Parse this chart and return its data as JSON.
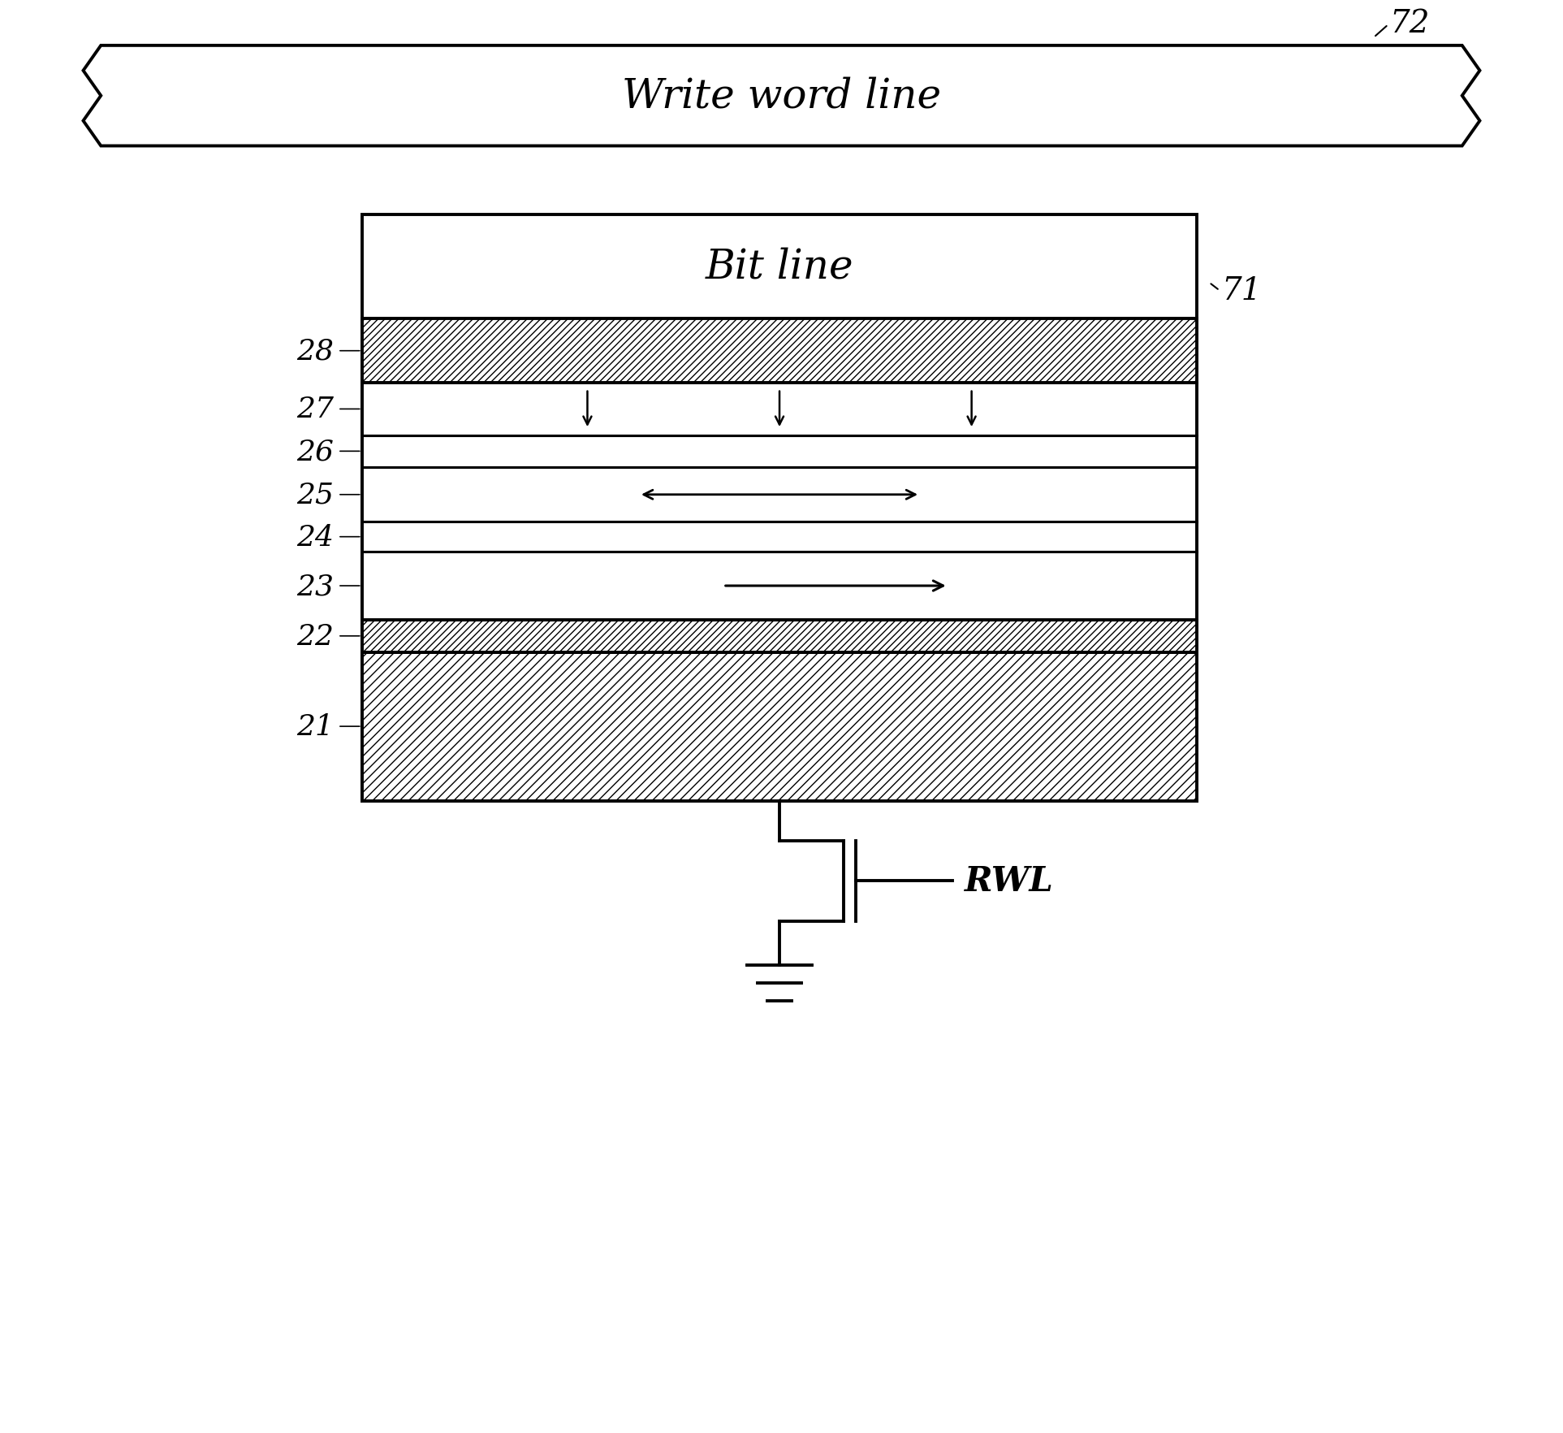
{
  "bg_color": "#ffffff",
  "fig_width": 19.25,
  "fig_height": 17.65,
  "dpi": 100,
  "wwl_label": "Write word line",
  "label_72": "72",
  "bit_line_label": "Bit line",
  "label_71": "71",
  "rwl_label": "RWL",
  "font_sizes": {
    "wwl": 36,
    "bitline": 36,
    "label_numbers": 26,
    "rwl": 30,
    "label_72": 28,
    "label_71": 28
  },
  "lw": 2.2,
  "lw_thick": 2.8
}
